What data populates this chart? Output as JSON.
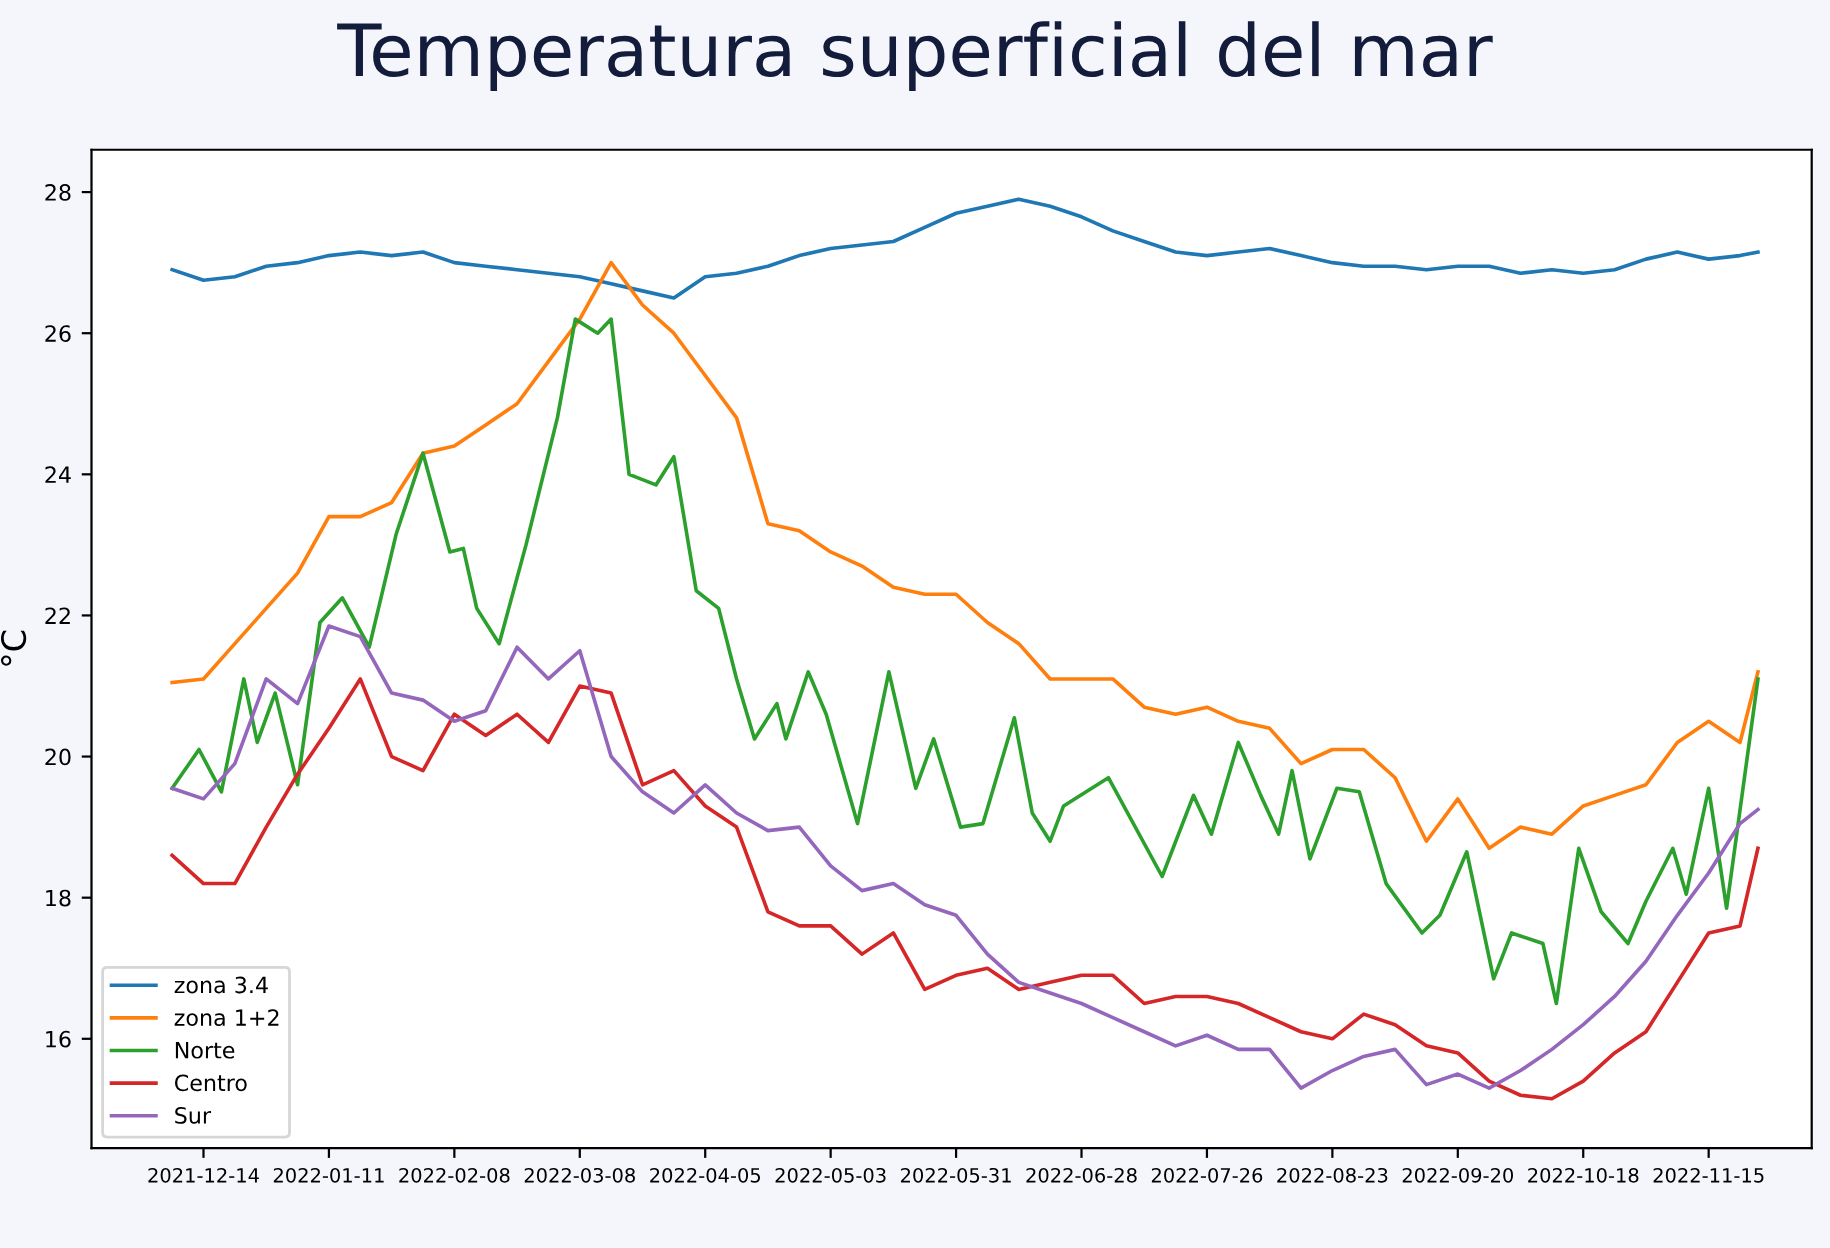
{
  "chart_data": {
    "type": "line",
    "title": "Temperatura superficial del mar",
    "ylabel": "°C",
    "x": [
      "2021-12-07",
      "2021-12-14",
      "2021-12-21",
      "2021-12-28",
      "2022-01-04",
      "2022-01-11",
      "2022-01-18",
      "2022-01-25",
      "2022-02-01",
      "2022-02-08",
      "2022-02-15",
      "2022-02-22",
      "2022-03-01",
      "2022-03-08",
      "2022-03-15",
      "2022-03-22",
      "2022-03-29",
      "2022-04-05",
      "2022-04-12",
      "2022-04-19",
      "2022-04-26",
      "2022-05-03",
      "2022-05-10",
      "2022-05-17",
      "2022-05-24",
      "2022-05-31",
      "2022-06-07",
      "2022-06-14",
      "2022-06-21",
      "2022-06-28",
      "2022-07-05",
      "2022-07-12",
      "2022-07-19",
      "2022-07-26",
      "2022-08-02",
      "2022-08-09",
      "2022-08-16",
      "2022-08-23",
      "2022-08-30",
      "2022-09-06",
      "2022-09-13",
      "2022-09-20",
      "2022-09-27",
      "2022-10-04",
      "2022-10-11",
      "2022-10-18",
      "2022-10-25",
      "2022-11-01",
      "2022-11-08",
      "2022-11-15",
      "2022-11-22",
      "2022-11-26"
    ],
    "series": [
      {
        "name": "zona 3.4",
        "color": "#1f77b4",
        "values": [
          26.9,
          26.75,
          26.8,
          26.95,
          27.0,
          27.1,
          27.15,
          27.1,
          27.15,
          27.0,
          26.95,
          26.9,
          26.85,
          26.8,
          26.7,
          26.6,
          26.5,
          26.8,
          26.85,
          26.95,
          27.1,
          27.2,
          27.25,
          27.3,
          27.5,
          27.7,
          27.8,
          27.9,
          27.8,
          27.65,
          27.45,
          27.3,
          27.15,
          27.1,
          27.15,
          27.2,
          27.1,
          27.0,
          26.95,
          26.95,
          26.9,
          26.95,
          26.95,
          26.85,
          26.9,
          26.85,
          26.9,
          27.05,
          27.15,
          27.05,
          27.1,
          27.15
        ]
      },
      {
        "name": "zona 1+2",
        "color": "#ff7f0e",
        "values": [
          21.05,
          21.1,
          21.6,
          22.1,
          22.6,
          23.4,
          23.4,
          23.6,
          24.3,
          24.4,
          24.7,
          25.0,
          25.6,
          26.2,
          27.0,
          26.4,
          26.0,
          25.4,
          24.8,
          23.3,
          23.2,
          22.9,
          22.7,
          22.4,
          22.3,
          22.3,
          21.9,
          21.6,
          21.1,
          21.1,
          21.1,
          20.7,
          20.6,
          20.7,
          20.5,
          20.4,
          19.9,
          20.1,
          20.1,
          19.7,
          18.8,
          19.4,
          18.7,
          19.0,
          18.9,
          19.3,
          19.45,
          19.6,
          20.2,
          20.5,
          20.2,
          21.2
        ]
      },
      {
        "name": "Norte",
        "color": "#2ca02c",
        "x": [
          "2021-12-07",
          "2021-12-13",
          "2021-12-18",
          "2021-12-23",
          "2021-12-26",
          "2021-12-30",
          "2022-01-04",
          "2022-01-09",
          "2022-01-14",
          "2022-01-20",
          "2022-01-26",
          "2022-02-01",
          "2022-02-07",
          "2022-02-10",
          "2022-02-13",
          "2022-02-18",
          "2022-02-24",
          "2022-03-03",
          "2022-03-07",
          "2022-03-12",
          "2022-03-15",
          "2022-03-19",
          "2022-03-25",
          "2022-03-29",
          "2022-04-03",
          "2022-04-08",
          "2022-04-12",
          "2022-04-16",
          "2022-04-21",
          "2022-04-23",
          "2022-04-28",
          "2022-05-02",
          "2022-05-09",
          "2022-05-16",
          "2022-05-22",
          "2022-05-26",
          "2022-06-01",
          "2022-06-06",
          "2022-06-13",
          "2022-06-17",
          "2022-06-21",
          "2022-06-24",
          "2022-07-04",
          "2022-07-16",
          "2022-07-23",
          "2022-07-27",
          "2022-08-02",
          "2022-08-07",
          "2022-08-11",
          "2022-08-14",
          "2022-08-18",
          "2022-08-24",
          "2022-08-29",
          "2022-09-04",
          "2022-09-12",
          "2022-09-16",
          "2022-09-22",
          "2022-09-28",
          "2022-10-02",
          "2022-10-09",
          "2022-10-12",
          "2022-10-17",
          "2022-10-22",
          "2022-10-28",
          "2022-11-01",
          "2022-11-07",
          "2022-11-10",
          "2022-11-15",
          "2022-11-19",
          "2022-11-26"
        ],
        "values": [
          19.55,
          20.1,
          19.5,
          21.1,
          20.2,
          20.9,
          19.6,
          21.9,
          22.25,
          21.55,
          23.15,
          24.3,
          22.9,
          22.95,
          22.1,
          21.6,
          23.0,
          24.8,
          26.2,
          26.0,
          26.2,
          24.0,
          23.85,
          24.25,
          22.35,
          22.1,
          21.1,
          20.25,
          20.75,
          20.25,
          21.2,
          20.6,
          19.05,
          21.2,
          19.55,
          20.25,
          19.0,
          19.05,
          20.55,
          19.2,
          18.8,
          19.3,
          19.7,
          18.3,
          19.45,
          18.9,
          20.2,
          19.45,
          18.9,
          19.8,
          18.55,
          19.55,
          19.5,
          18.2,
          17.5,
          17.75,
          18.65,
          16.85,
          17.5,
          17.35,
          16.5,
          18.7,
          17.8,
          17.35,
          17.95,
          18.7,
          18.05,
          19.55,
          17.85,
          21.1
        ]
      },
      {
        "name": "Centro",
        "color": "#d62728",
        "values": [
          18.6,
          18.2,
          18.2,
          19.0,
          19.75,
          20.4,
          21.1,
          20.0,
          19.8,
          20.6,
          20.3,
          20.6,
          20.2,
          21.0,
          20.9,
          19.6,
          19.8,
          19.3,
          19.0,
          17.8,
          17.6,
          17.6,
          17.2,
          17.5,
          16.7,
          16.9,
          17.0,
          16.7,
          16.8,
          16.9,
          16.9,
          16.5,
          16.6,
          16.6,
          16.5,
          16.3,
          16.1,
          16.0,
          16.35,
          16.2,
          15.9,
          15.8,
          15.4,
          15.2,
          15.15,
          15.4,
          15.8,
          16.1,
          16.8,
          17.5,
          17.6,
          18.7
        ]
      },
      {
        "name": "Sur",
        "color": "#9467bd",
        "values": [
          19.55,
          19.4,
          19.9,
          21.1,
          20.75,
          21.85,
          21.7,
          20.9,
          20.8,
          20.5,
          20.65,
          21.55,
          21.1,
          21.5,
          20.0,
          19.5,
          19.2,
          19.6,
          19.2,
          18.95,
          19.0,
          18.45,
          18.1,
          18.2,
          17.9,
          17.75,
          17.2,
          16.8,
          16.65,
          16.5,
          16.3,
          16.1,
          15.9,
          16.05,
          15.85,
          15.85,
          15.3,
          15.55,
          15.75,
          15.85,
          15.35,
          15.5,
          15.3,
          15.55,
          15.85,
          16.2,
          16.6,
          17.1,
          17.75,
          18.35,
          19.05,
          19.25
        ]
      }
    ],
    "xlim": [
      "2021-11-19",
      "2022-12-08"
    ],
    "xticks": [
      "2021-12-14",
      "2022-01-11",
      "2022-02-08",
      "2022-03-08",
      "2022-04-05",
      "2022-05-03",
      "2022-05-31",
      "2022-06-28",
      "2022-07-26",
      "2022-08-23",
      "2022-09-20",
      "2022-10-18",
      "2022-11-15"
    ],
    "ylim": [
      14.45,
      28.6
    ],
    "yticks": [
      16,
      18,
      20,
      22,
      24,
      26,
      28
    ],
    "legend": "lower left",
    "grid": false,
    "marker": "none",
    "line_style": "solid"
  }
}
